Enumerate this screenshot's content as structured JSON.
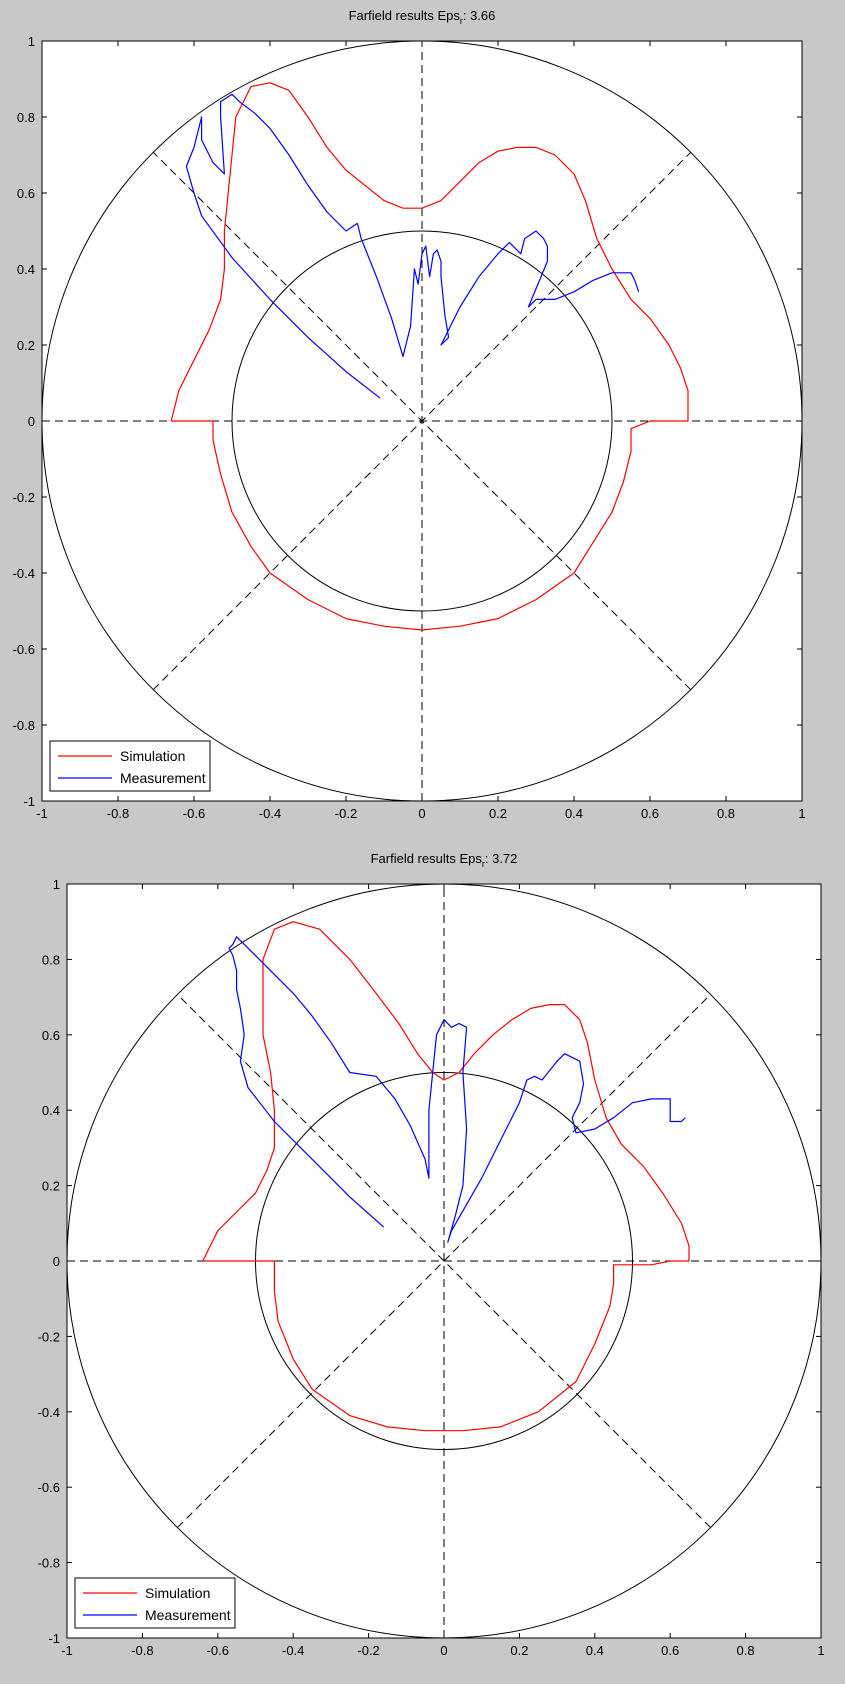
{
  "colors": {
    "background": "#c8c8c8",
    "axes_bg": "#ffffff",
    "simulation": "#ff0000",
    "measurement": "#0000ff",
    "grid": "#000000"
  },
  "chart_data": [
    {
      "type": "line",
      "title_prefix": "Farfield results Eps",
      "title_sub": "r",
      "title_suffix": ": 3.66",
      "xlim": [
        -1,
        1
      ],
      "ylim": [
        -1,
        1
      ],
      "xticks": [
        "-1",
        "-0.8",
        "-0.6",
        "-0.4",
        "-0.2",
        "0",
        "0.2",
        "0.4",
        "0.6",
        "0.8",
        "1"
      ],
      "yticks": [
        "1",
        "0.8",
        "0.6",
        "0.4",
        "0.2",
        "0",
        "-0.2",
        "-0.4",
        "-0.6",
        "-0.8",
        "-1"
      ],
      "grid_circles": [
        1.0,
        0.5
      ],
      "legend_position": "bottom-left",
      "series": [
        {
          "name": "Simulation",
          "color": "#ff0000",
          "x": [
            -0.66,
            -0.64,
            -0.6,
            -0.56,
            -0.53,
            -0.52,
            -0.52,
            -0.51,
            -0.5,
            -0.49,
            -0.45,
            -0.4,
            -0.35,
            -0.3,
            -0.25,
            -0.2,
            -0.15,
            -0.1,
            -0.05,
            0.0,
            0.05,
            0.1,
            0.15,
            0.2,
            0.25,
            0.3,
            0.35,
            0.4,
            0.43,
            0.46,
            0.5,
            0.55,
            0.6,
            0.65,
            0.68,
            0.7,
            0.7,
            0.6,
            0.55,
            0.55,
            0.53,
            0.5,
            0.45,
            0.4,
            0.3,
            0.2,
            0.1,
            0.0,
            -0.1,
            -0.2,
            -0.3,
            -0.4,
            -0.45,
            -0.5,
            -0.53,
            -0.55,
            -0.55,
            -0.66
          ],
          "y": [
            0.0,
            0.08,
            0.16,
            0.24,
            0.32,
            0.4,
            0.5,
            0.6,
            0.7,
            0.8,
            0.88,
            0.89,
            0.87,
            0.8,
            0.72,
            0.66,
            0.62,
            0.58,
            0.56,
            0.56,
            0.58,
            0.63,
            0.68,
            0.71,
            0.72,
            0.72,
            0.7,
            0.65,
            0.58,
            0.48,
            0.4,
            0.32,
            0.27,
            0.2,
            0.14,
            0.08,
            0.0,
            0.0,
            -0.02,
            -0.08,
            -0.16,
            -0.24,
            -0.32,
            -0.4,
            -0.47,
            -0.52,
            -0.54,
            -0.55,
            -0.54,
            -0.52,
            -0.47,
            -0.4,
            -0.33,
            -0.24,
            -0.14,
            -0.05,
            0.0,
            0.0
          ]
        },
        {
          "name": "Measurement",
          "color": "#0000ff",
          "x": [
            -0.11,
            -0.2,
            -0.3,
            -0.4,
            -0.5,
            -0.58,
            -0.6,
            -0.62,
            -0.6,
            -0.58,
            -0.58,
            -0.55,
            -0.52,
            -0.53,
            -0.53,
            -0.5,
            -0.48,
            -0.44,
            -0.4,
            -0.35,
            -0.3,
            -0.25,
            -0.2,
            -0.17,
            -0.16,
            -0.12,
            -0.08,
            -0.05,
            -0.03,
            -0.02,
            -0.01,
            0.0,
            0.01,
            0.02,
            0.03,
            0.04,
            0.05,
            0.05,
            0.06,
            0.07,
            0.05,
            0.1,
            0.15,
            0.2,
            0.23,
            0.26,
            0.27,
            0.3,
            0.32,
            0.33,
            0.33,
            0.28,
            0.3,
            0.35,
            0.4,
            0.45,
            0.5,
            0.55,
            0.56,
            0.57
          ],
          "y": [
            0.06,
            0.13,
            0.22,
            0.32,
            0.43,
            0.54,
            0.6,
            0.67,
            0.72,
            0.8,
            0.74,
            0.68,
            0.65,
            0.8,
            0.84,
            0.86,
            0.84,
            0.81,
            0.77,
            0.7,
            0.62,
            0.55,
            0.5,
            0.52,
            0.48,
            0.38,
            0.27,
            0.17,
            0.25,
            0.4,
            0.36,
            0.44,
            0.46,
            0.38,
            0.44,
            0.45,
            0.42,
            0.38,
            0.28,
            0.22,
            0.2,
            0.3,
            0.38,
            0.44,
            0.47,
            0.44,
            0.48,
            0.5,
            0.48,
            0.46,
            0.42,
            0.3,
            0.32,
            0.32,
            0.34,
            0.37,
            0.39,
            0.39,
            0.37,
            0.34
          ]
        }
      ]
    },
    {
      "type": "line",
      "title_prefix": "Farfield results Eps",
      "title_sub": "r",
      "title_suffix": ": 3.72",
      "xlim": [
        -1,
        1
      ],
      "ylim": [
        -1,
        1
      ],
      "xticks": [
        "-1",
        "-0.8",
        "-0.6",
        "-0.4",
        "-0.2",
        "0",
        "0.2",
        "0.4",
        "0.6",
        "0.8",
        "1"
      ],
      "yticks": [
        "1",
        "0.8",
        "0.6",
        "0.4",
        "0.2",
        "0",
        "-0.2",
        "-0.4",
        "-0.6",
        "-0.8",
        "-1"
      ],
      "grid_circles": [
        1.0,
        0.5
      ],
      "legend_position": "bottom-left",
      "series": [
        {
          "name": "Simulation",
          "color": "#ff0000",
          "x": [
            -0.64,
            -0.6,
            -0.55,
            -0.5,
            -0.47,
            -0.45,
            -0.45,
            -0.46,
            -0.48,
            -0.48,
            -0.45,
            -0.4,
            -0.33,
            -0.25,
            -0.18,
            -0.12,
            -0.07,
            -0.03,
            0.0,
            0.04,
            0.08,
            0.13,
            0.18,
            0.23,
            0.28,
            0.32,
            0.36,
            0.38,
            0.4,
            0.43,
            0.47,
            0.53,
            0.58,
            0.63,
            0.65,
            0.65,
            0.6,
            0.55,
            0.45,
            0.45,
            0.44,
            0.4,
            0.35,
            0.25,
            0.15,
            0.05,
            -0.05,
            -0.15,
            -0.25,
            -0.35,
            -0.4,
            -0.44,
            -0.45,
            -0.45,
            -0.5,
            -0.64
          ],
          "y": [
            0.0,
            0.08,
            0.13,
            0.18,
            0.24,
            0.3,
            0.4,
            0.5,
            0.6,
            0.8,
            0.88,
            0.9,
            0.88,
            0.8,
            0.71,
            0.63,
            0.55,
            0.5,
            0.48,
            0.5,
            0.55,
            0.6,
            0.64,
            0.67,
            0.68,
            0.68,
            0.64,
            0.58,
            0.48,
            0.38,
            0.31,
            0.25,
            0.18,
            0.1,
            0.04,
            0.0,
            0.0,
            -0.01,
            -0.01,
            -0.06,
            -0.12,
            -0.22,
            -0.32,
            -0.4,
            -0.44,
            -0.45,
            -0.45,
            -0.44,
            -0.41,
            -0.34,
            -0.26,
            -0.16,
            -0.08,
            0.0,
            0.0,
            0.0
          ]
        },
        {
          "name": "Measurement",
          "color": "#0000ff",
          "x": [
            -0.16,
            -0.25,
            -0.35,
            -0.45,
            -0.52,
            -0.54,
            -0.53,
            -0.54,
            -0.55,
            -0.55,
            -0.56,
            -0.57,
            -0.56,
            -0.55,
            -0.53,
            -0.5,
            -0.46,
            -0.4,
            -0.35,
            -0.3,
            -0.25,
            -0.18,
            -0.13,
            -0.09,
            -0.05,
            -0.04,
            -0.04,
            -0.02,
            0.0,
            0.02,
            0.04,
            0.06,
            0.05,
            0.06,
            0.05,
            0.03,
            0.01,
            0.02,
            0.1,
            0.15,
            0.2,
            0.22,
            0.24,
            0.26,
            0.3,
            0.32,
            0.36,
            0.37,
            0.36,
            0.34,
            0.35,
            0.4,
            0.45,
            0.5,
            0.55,
            0.6,
            0.6,
            0.63,
            0.64
          ],
          "y": [
            0.09,
            0.17,
            0.27,
            0.37,
            0.46,
            0.53,
            0.6,
            0.67,
            0.72,
            0.77,
            0.81,
            0.83,
            0.84,
            0.86,
            0.84,
            0.81,
            0.77,
            0.71,
            0.65,
            0.58,
            0.5,
            0.49,
            0.43,
            0.36,
            0.27,
            0.22,
            0.4,
            0.6,
            0.64,
            0.62,
            0.63,
            0.62,
            0.5,
            0.35,
            0.2,
            0.12,
            0.05,
            0.08,
            0.22,
            0.32,
            0.42,
            0.48,
            0.49,
            0.48,
            0.53,
            0.55,
            0.53,
            0.47,
            0.42,
            0.38,
            0.34,
            0.35,
            0.38,
            0.42,
            0.43,
            0.43,
            0.37,
            0.37,
            0.38
          ]
        }
      ]
    }
  ]
}
